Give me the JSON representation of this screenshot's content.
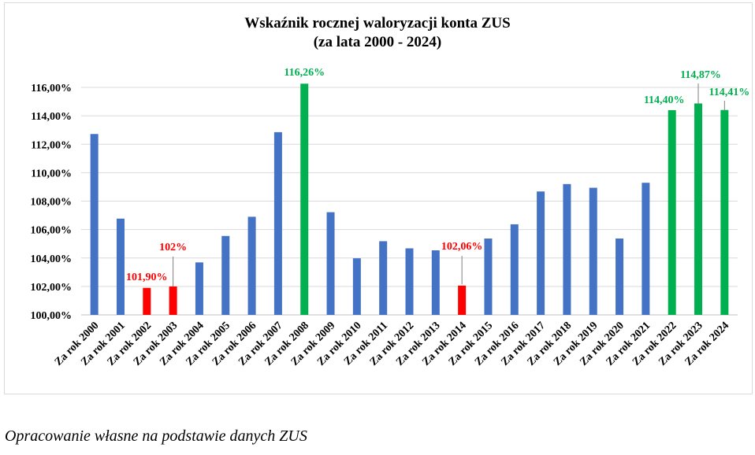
{
  "caption": "Opracowanie własne na podstawie danych ZUS",
  "colors": {
    "normal": "#4472c4",
    "low": "#ff0000",
    "high": "#00b050",
    "grid": "#d9d9d9",
    "axis": "#bfbfbf"
  },
  "chart_data": {
    "type": "bar",
    "title": [
      "Wskaźnik rocznej  waloryzacji  konta ZUS",
      "(za lata 2000 - 2024)"
    ],
    "xlabel": "",
    "ylabel": "",
    "ylim": [
      100,
      116
    ],
    "yticks": [
      "100,00%",
      "102,00%",
      "104,00%",
      "106,00%",
      "108,00%",
      "110,00%",
      "112,00%",
      "114,00%",
      "116,00%"
    ],
    "grid": true,
    "legend": false,
    "categories": [
      "Za rok 2000",
      "Za rok 2001",
      "Za rok 2002",
      "Za rok 2003",
      "Za rok 2004",
      "Za rok 2005",
      "Za rok 2006",
      "Za rok 2007",
      "Za rok 2008",
      "Za rok 2009",
      "Za rok 2010",
      "Za rok 2011",
      "Za rok 2012",
      "Za rok 2013",
      "Za rok 2014",
      "Za rok 2015",
      "Za rok 2016",
      "Za rok 2017",
      "Za rok 2018",
      "Za rok 2019",
      "Za rok 2020",
      "Za rok 2021",
      "Za rok 2022",
      "Za rok 2023",
      "Za rok 2024"
    ],
    "values": [
      112.72,
      106.77,
      101.9,
      102.0,
      103.69,
      105.55,
      106.9,
      112.85,
      116.26,
      107.22,
      103.98,
      105.18,
      104.68,
      104.54,
      102.06,
      105.37,
      106.37,
      108.68,
      109.2,
      108.94,
      105.37,
      109.29,
      114.4,
      114.87,
      114.41
    ],
    "bar_colors": [
      "normal",
      "normal",
      "low",
      "low",
      "normal",
      "normal",
      "normal",
      "normal",
      "high",
      "normal",
      "normal",
      "normal",
      "normal",
      "normal",
      "low",
      "normal",
      "normal",
      "normal",
      "normal",
      "normal",
      "normal",
      "normal",
      "high",
      "high",
      "high"
    ],
    "data_labels": [
      {
        "index": 2,
        "text": "101,90%",
        "color": "low"
      },
      {
        "index": 3,
        "text": "102%",
        "color": "low"
      },
      {
        "index": 8,
        "text": "116,26%",
        "color": "high"
      },
      {
        "index": 14,
        "text": "102,06%",
        "color": "low"
      },
      {
        "index": 22,
        "text": "114,40%",
        "color": "high"
      },
      {
        "index": 23,
        "text": "114,87%",
        "color": "high"
      },
      {
        "index": 24,
        "text": "114,41%",
        "color": "high"
      }
    ]
  }
}
